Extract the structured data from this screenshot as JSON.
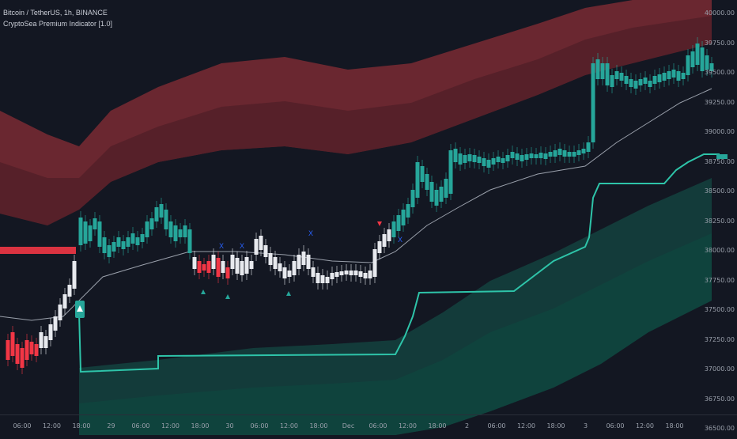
{
  "legend": {
    "symbol": "Bitcoin / TetherUS, 1h, BINANCE",
    "indicator": "CryptoSea Premium Indicator [1.0]"
  },
  "price_axis": {
    "ticks": [
      "40000.00",
      "39750.00",
      "39500.00",
      "39250.00",
      "39000.00",
      "38750.00",
      "38500.00",
      "38250.00",
      "38000.00",
      "37750.00",
      "37500.00",
      "37250.00",
      "37000.00",
      "36750.00",
      "36500.00"
    ]
  },
  "time_axis": {
    "ticks": [
      "06:00",
      "12:00",
      "18:00",
      "29",
      "06:00",
      "12:00",
      "18:00",
      "30",
      "06:00",
      "12:00",
      "18:00",
      "Dec",
      "06:00",
      "12:00",
      "18:00",
      "2",
      "06:00",
      "12:00",
      "18:00",
      "3",
      "06:00",
      "12:00",
      "18:00"
    ]
  },
  "signals": {
    "cross_label": "X"
  },
  "colors": {
    "background": "#131722",
    "bull": "#26a69a",
    "bear": "#f23645",
    "neutral": "#e7e9ee",
    "upper_band": "#7a2a33",
    "lower_band": "#145a4e",
    "ma_line": "#9aa0ab",
    "signal_x": "#2962ff"
  }
}
